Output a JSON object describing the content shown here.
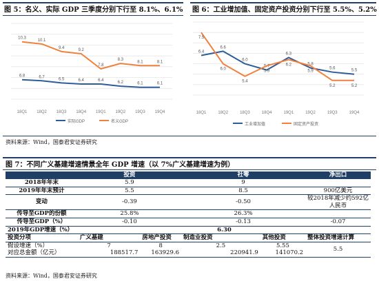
{
  "figure5": {
    "title": "图 5：名义、实际 GDP 三季度分别下行至 8.1%、6.1%",
    "chart_data": {
      "type": "line",
      "categories": [
        "18Q1",
        "18Q2",
        "18Q3",
        "18Q4",
        "19Q1",
        "19Q2",
        "19Q3",
        "19Q4"
      ],
      "series": [
        {
          "name": "实际GDP",
          "values": [
            6.8,
            6.7,
            6.5,
            6.4,
            6.4,
            6.2,
            6.1,
            6.1
          ],
          "labels": [
            "6.8",
            "6.7",
            "6.5",
            "6.4",
            "6.4",
            "6.2",
            "6.1",
            "6.1"
          ],
          "color": "#2e5c99"
        },
        {
          "name": "名义GDP",
          "values": [
            10.3,
            10.1,
            9.4,
            9.2,
            7.8,
            8.3,
            8.1,
            8.1
          ],
          "labels": [
            "10.3",
            "10.1",
            "9.4",
            "9.2",
            "7.8",
            "8.3",
            "8.1",
            "8.1"
          ],
          "color": "#f0803c"
        }
      ],
      "ylim": [
        5,
        12
      ]
    }
  },
  "figure6": {
    "title": "图 6：工业增加值、固定资产投资分别下行至 5.5%、5.2%",
    "chart_data": {
      "type": "line",
      "categories": [
        "18Q1",
        "18Q2",
        "18Q3",
        "18Q4",
        "19Q1",
        "19Q2",
        "19Q3",
        "19Q4"
      ],
      "series": [
        {
          "name": "工业增加值",
          "values": [
            6.4,
            6.6,
            6.0,
            5.7,
            6.3,
            5.8,
            5.6,
            5.5
          ],
          "labels": [
            "6.4",
            "6.6",
            "6.0",
            "5.7",
            "6.3",
            "5.8",
            "5.6",
            "5.5"
          ],
          "color": "#2e5c99"
        },
        {
          "name": "固定资产投资",
          "values": [
            7.5,
            6.0,
            5.4,
            5.9,
            6.2,
            5.9,
            5.2,
            5.2
          ],
          "labels": [
            "7.5",
            "6.0",
            "5.4",
            "5.9",
            "6.2",
            "5.9",
            "5.2",
            "5.2"
          ],
          "color": "#f0803c"
        }
      ],
      "ylim": [
        4.5,
        8
      ]
    }
  },
  "source1": "资料来源：Wind，国泰君安证券研究",
  "figure7": {
    "title": "图 7：不同广义基建增速情景全年 GDP 增速（以 7%广义基建增速为例）",
    "header": [
      "",
      "投资",
      "社零",
      "净出口"
    ],
    "rows": [
      {
        "label": "2018年年末",
        "inv": "5.9",
        "ret": "9",
        "net": ""
      },
      {
        "label": "2019年年末预计",
        "inv": "5.5",
        "ret": "8.5",
        "net": "900亿美元"
      },
      {
        "label": "变动",
        "inv": "-0.39",
        "ret": "-0.50",
        "net1": "较2018年减少约592亿",
        "net2": "人民币"
      },
      {
        "label": "传导至GDP的份额",
        "inv": "25.8%",
        "ret": "26.3%",
        "net": ""
      },
      {
        "label": "传导至GDP（%）",
        "inv": "-0.10",
        "ret": "-0.13",
        "net": "-0.07"
      }
    ],
    "gdp_row": {
      "label": "2019年GDP增速（%）",
      "value": "6.30"
    },
    "inv_header": [
      "投资分项",
      "广义基建",
      "房地产投资",
      "制造业投资",
      "其他投资",
      "整体投资增速计算"
    ],
    "assumed": {
      "label": "假设增速（%）",
      "values": [
        "7",
        "8",
        "2.5",
        "5.55"
      ],
      "overall": "5.5"
    },
    "amount": {
      "label": "对应总金额（亿元）",
      "values": [
        "188517.7",
        "163929.6",
        "220941.9",
        "141070.2"
      ]
    }
  },
  "source2": "资料来源：Wind，国泰君安证券研究"
}
